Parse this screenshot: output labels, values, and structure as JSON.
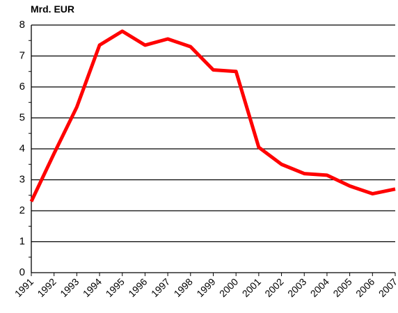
{
  "chart_data": {
    "type": "line",
    "y_axis_label": "Mrd. EUR",
    "x": [
      1991,
      1992,
      1993,
      1994,
      1995,
      1996,
      1997,
      1998,
      1999,
      2000,
      2001,
      2002,
      2003,
      2004,
      2005,
      2006,
      2007
    ],
    "series": [
      {
        "color": "#ff0000",
        "values": [
          2.3,
          3.85,
          5.35,
          7.35,
          7.8,
          7.35,
          7.55,
          7.3,
          6.55,
          6.5,
          4.05,
          3.5,
          3.2,
          3.15,
          2.8,
          2.55,
          2.7
        ]
      }
    ],
    "xlim": [
      1991,
      2007
    ],
    "xticks": [
      1991,
      1992,
      1993,
      1994,
      1995,
      1996,
      1997,
      1998,
      1999,
      2000,
      2001,
      2002,
      2003,
      2004,
      2005,
      2006,
      2007
    ],
    "ylim": [
      0,
      8
    ],
    "yticks": [
      0,
      1,
      2,
      3,
      4,
      5,
      6,
      7,
      8
    ],
    "grid": true
  }
}
